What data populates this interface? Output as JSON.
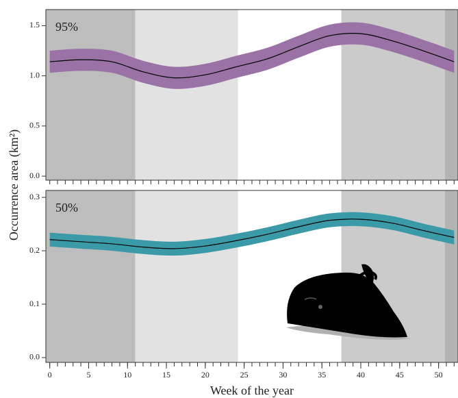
{
  "chart_data": [
    {
      "type": "line",
      "label": "95%",
      "ylabel": "Occurrence area (km²)",
      "x": [
        0,
        4,
        8,
        12,
        16,
        20,
        24,
        28,
        32,
        36,
        40,
        44,
        48,
        52
      ],
      "values": [
        1.14,
        1.16,
        1.14,
        1.04,
        0.98,
        1.01,
        1.09,
        1.17,
        1.29,
        1.4,
        1.42,
        1.35,
        1.25,
        1.14
      ],
      "lower": [
        1.03,
        1.05,
        1.03,
        0.93,
        0.87,
        0.9,
        0.98,
        1.06,
        1.18,
        1.29,
        1.31,
        1.24,
        1.14,
        1.03
      ],
      "upper": [
        1.25,
        1.27,
        1.25,
        1.15,
        1.09,
        1.12,
        1.2,
        1.28,
        1.4,
        1.51,
        1.53,
        1.46,
        1.36,
        1.25
      ],
      "line_color": "#000000",
      "band_color": "#9b72a6",
      "xlim": [
        -0.5,
        52.5
      ],
      "ylim": [
        -0.04,
        1.66
      ],
      "yticks": [
        {
          "value": 0,
          "label": "0.0"
        },
        0.5,
        {
          "value": 1,
          "label": "1.0"
        },
        1.5
      ],
      "xminorticks": [
        0,
        1,
        2,
        3,
        4,
        5,
        6,
        7,
        8,
        9,
        10,
        11,
        12,
        13,
        14,
        15,
        16,
        17,
        18,
        19,
        20,
        21,
        22,
        23,
        24,
        25,
        26,
        27,
        28,
        29,
        30,
        31,
        32,
        33,
        34,
        35,
        36,
        37,
        38,
        39,
        40,
        41,
        42,
        43,
        44,
        45,
        46,
        47,
        48,
        49,
        50,
        51,
        52
      ],
      "shading": [
        {
          "start": -0.5,
          "end": 11,
          "color": "#bdbdbd"
        },
        {
          "start": 11,
          "end": 24.2,
          "color": "#e2e2e2"
        },
        {
          "start": 24.2,
          "end": 37.5,
          "color": "#ffffff"
        },
        {
          "start": 37.5,
          "end": 50.8,
          "color": "#cbcbcb"
        },
        {
          "start": 50.8,
          "end": 52.5,
          "color": "#b3b3b3"
        }
      ]
    },
    {
      "type": "line",
      "label": "50%",
      "xlabel": "Week of the year",
      "x": [
        0,
        4,
        8,
        12,
        16,
        20,
        24,
        28,
        32,
        36,
        40,
        44,
        48,
        52
      ],
      "values": [
        0.221,
        0.217,
        0.213,
        0.207,
        0.204,
        0.209,
        0.219,
        0.231,
        0.245,
        0.257,
        0.259,
        0.252,
        0.238,
        0.225
      ],
      "lower": [
        0.208,
        0.204,
        0.2,
        0.194,
        0.191,
        0.196,
        0.206,
        0.218,
        0.232,
        0.244,
        0.246,
        0.239,
        0.225,
        0.212
      ],
      "upper": [
        0.234,
        0.23,
        0.226,
        0.22,
        0.217,
        0.222,
        0.232,
        0.244,
        0.258,
        0.27,
        0.272,
        0.265,
        0.251,
        0.238
      ],
      "line_color": "#000000",
      "band_color": "#3b9aa8",
      "xlim": [
        -0.5,
        52.5
      ],
      "ylim": [
        -0.009,
        0.313
      ],
      "yticks": [
        {
          "value": 0,
          "label": "0.0"
        },
        0.1,
        0.2,
        0.3
      ],
      "xticks": [
        0,
        5,
        10,
        15,
        20,
        25,
        30,
        35,
        40,
        45,
        50
      ],
      "xminorticks": [
        0,
        1,
        2,
        3,
        4,
        5,
        6,
        7,
        8,
        9,
        10,
        11,
        12,
        13,
        14,
        15,
        16,
        17,
        18,
        19,
        20,
        21,
        22,
        23,
        24,
        25,
        26,
        27,
        28,
        29,
        30,
        31,
        32,
        33,
        34,
        35,
        36,
        37,
        38,
        39,
        40,
        41,
        42,
        43,
        44,
        45,
        46,
        47,
        48,
        49,
        50,
        51,
        52
      ],
      "shading": [
        {
          "start": -0.5,
          "end": 11,
          "color": "#bdbdbd"
        },
        {
          "start": 11,
          "end": 24.2,
          "color": "#e2e2e2"
        },
        {
          "start": 24.2,
          "end": 37.5,
          "color": "#ffffff"
        },
        {
          "start": 37.5,
          "end": 50.8,
          "color": "#cbcbcb"
        },
        {
          "start": 50.8,
          "end": 52.5,
          "color": "#b3b3b3"
        }
      ]
    }
  ]
}
